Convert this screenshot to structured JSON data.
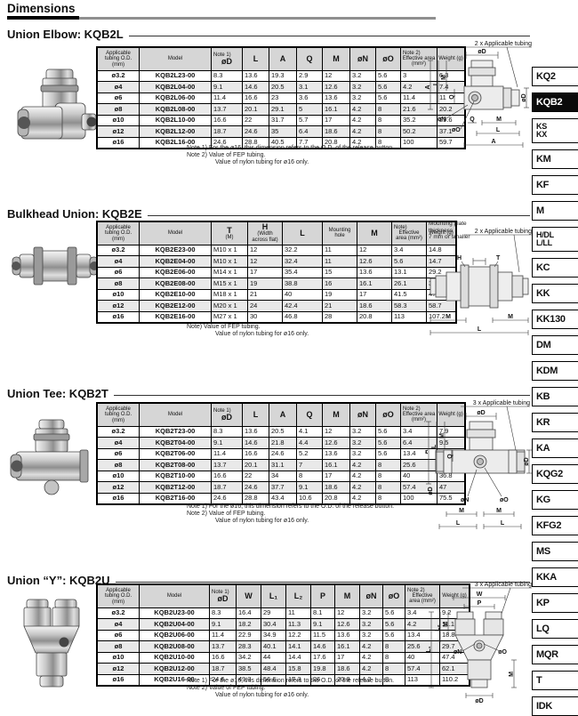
{
  "page": {
    "title": "Dimensions"
  },
  "colors": {
    "header_bg": "#d6d6d6",
    "row_alt": "#e9e9e9",
    "active_tab_bg": "#0a0a0a"
  },
  "sidebar": {
    "items": [
      {
        "label": "KQ2",
        "active": false
      },
      {
        "label": "KQB2",
        "active": true
      },
      {
        "label": "KS\nKX",
        "active": false
      },
      {
        "label": "KM",
        "active": false
      },
      {
        "label": "KF",
        "active": false
      },
      {
        "label": "M",
        "active": false
      },
      {
        "label": "H/DL\nL/LL",
        "active": false
      },
      {
        "label": "KC",
        "active": false
      },
      {
        "label": "KK",
        "active": false
      },
      {
        "label": "KK130",
        "active": false
      },
      {
        "label": "DM",
        "active": false
      },
      {
        "label": "KDM",
        "active": false
      },
      {
        "label": "KB",
        "active": false
      },
      {
        "label": "KR",
        "active": false
      },
      {
        "label": "KA",
        "active": false
      },
      {
        "label": "KQG2",
        "active": false
      },
      {
        "label": "KG",
        "active": false
      },
      {
        "label": "KFG2",
        "active": false
      },
      {
        "label": "MS",
        "active": false
      },
      {
        "label": "KKA",
        "active": false
      },
      {
        "label": "KP",
        "active": false
      },
      {
        "label": "LQ",
        "active": false
      },
      {
        "label": "MQR",
        "active": false
      },
      {
        "label": "T",
        "active": false
      },
      {
        "label": "IDK",
        "active": false
      }
    ]
  },
  "sections": [
    {
      "heading": "Union Elbow: KQB2L",
      "table": {
        "headers": [
          {
            "label": "Applicable tubing O.D.",
            "post": "(mm)",
            "small": true
          },
          {
            "label": "Model",
            "small": true
          },
          {
            "pre": "Note 1)",
            "label": "øD",
            "bold": true
          },
          {
            "label": "L",
            "bold": true
          },
          {
            "label": "A",
            "bold": true
          },
          {
            "label": "Q",
            "bold": true
          },
          {
            "label": "M",
            "bold": true
          },
          {
            "label": "øN",
            "bold": true
          },
          {
            "label": "øO",
            "bold": true
          },
          {
            "pre": "Note 2)",
            "label": "Effective area (mm²)",
            "small": true
          },
          {
            "label": "Weight (g)",
            "small": true
          }
        ],
        "rows": [
          [
            "ø3.2",
            "KQB2L23-00",
            "8.3",
            "13.6",
            "19.3",
            "2.9",
            "12",
            "3.2",
            "5.6",
            "3",
            "6.3"
          ],
          [
            "ø4",
            "KQB2L04-00",
            "9.1",
            "14.6",
            "20.5",
            "3.1",
            "12.6",
            "3.2",
            "5.6",
            "4.2",
            "7.4"
          ],
          [
            "ø6",
            "KQB2L06-00",
            "11.4",
            "16.6",
            "23",
            "3.6",
            "13.6",
            "3.2",
            "5.6",
            "11.4",
            "11"
          ],
          [
            "ø8",
            "KQB2L08-00",
            "13.7",
            "20.1",
            "29.1",
            "5",
            "16.1",
            "4.2",
            "8",
            "21.6",
            "20.2"
          ],
          [
            "ø10",
            "KQB2L10-00",
            "16.6",
            "22",
            "31.7",
            "5.7",
            "17",
            "4.2",
            "8",
            "35.2",
            "29.6"
          ],
          [
            "ø12",
            "KQB2L12-00",
            "18.7",
            "24.6",
            "35",
            "6.4",
            "18.6",
            "4.2",
            "8",
            "50.2",
            "37.1"
          ],
          [
            "ø16",
            "KQB2L16-00",
            "24.6",
            "28.8",
            "40.5",
            "7.7",
            "20.8",
            "4.2",
            "8",
            "100",
            "59.7"
          ]
        ]
      },
      "notes": [
        "Note 1) For the ø16, this dimension refers to the O.D. of the release button.",
        "Note 2) Value of FEP tubing.",
        "Value of nylon tubing for ø16 only."
      ],
      "diagram": {
        "caption": "2 x Applicable tubing",
        "d_top": "øD",
        "a_left": "A",
        "l_left": "L",
        "m_left": "M",
        "q_left": "Q",
        "n": "øN",
        "o": "øO",
        "q_bottom": "Q",
        "m_bottom": "M",
        "l_bottom": "L",
        "a_bottom": "A",
        "d_right": "øD"
      }
    },
    {
      "heading": "Bulkhead Union: KQB2E",
      "table": {
        "headers": [
          {
            "label": "Applicable tubing O.D.",
            "post": "(mm)",
            "small": true
          },
          {
            "label": "Model",
            "small": true
          },
          {
            "label": "T",
            "post": "(M)",
            "bold": true
          },
          {
            "label": "H",
            "post": "(Width across flat)",
            "bold": true
          },
          {
            "label": "L",
            "bold": true
          },
          {
            "label": "Mounting hole",
            "small": true
          },
          {
            "label": "M",
            "bold": true
          },
          {
            "pre": "Note)",
            "label": "Effective area (mm²)",
            "small": true
          },
          {
            "label": "Weight (g)",
            "small": true
          }
        ],
        "rows": [
          [
            "ø3.2",
            "KQB2E23-00",
            "M10 x 1",
            "12",
            "32.2",
            "11",
            "12",
            "3.4",
            "14.8"
          ],
          [
            "ø4",
            "KQB2E04-00",
            "M10 x 1",
            "12",
            "32.4",
            "11",
            "12.6",
            "5.6",
            "14.7"
          ],
          [
            "ø6",
            "KQB2E06-00",
            "M14 x 1",
            "17",
            "35.4",
            "15",
            "13.6",
            "13.1",
            "29.2"
          ],
          [
            "ø8",
            "KQB2E08-00",
            "M15 x 1",
            "19",
            "38.8",
            "16",
            "16.1",
            "26.1",
            "34.9"
          ],
          [
            "ø10",
            "KQB2E10-00",
            "M18 x 1",
            "21",
            "40",
            "19",
            "17",
            "41.5",
            "47.1"
          ],
          [
            "ø12",
            "KQB2E12-00",
            "M20 x 1",
            "24",
            "42.4",
            "21",
            "18.6",
            "58.3",
            "58.7"
          ],
          [
            "ø16",
            "KQB2E16-00",
            "M27 x 1",
            "30",
            "46.8",
            "28",
            "20.8",
            "113",
            "107.2"
          ]
        ]
      },
      "notes": [
        "Note) Value of FEP tubing.",
        "Value of nylon tubing for ø16 only."
      ],
      "diagram": {
        "caption": "2 x Applicable tubing",
        "note": "Mounting plate\nthickness\n7 mm or smaller",
        "h": "H",
        "t": "T",
        "m_left": "M",
        "m_right": "M",
        "l": "L"
      }
    },
    {
      "heading": "Union Tee: KQB2T",
      "table": {
        "headers": [
          {
            "label": "Applicable tubing O.D.",
            "post": "(mm)",
            "small": true
          },
          {
            "label": "Model",
            "small": true
          },
          {
            "pre": "Note 1)",
            "label": "øD",
            "bold": true
          },
          {
            "label": "L",
            "bold": true
          },
          {
            "label": "A",
            "bold": true
          },
          {
            "label": "Q",
            "bold": true
          },
          {
            "label": "M",
            "bold": true
          },
          {
            "label": "øN",
            "bold": true
          },
          {
            "label": "øO",
            "bold": true
          },
          {
            "pre": "Note 2)",
            "label": "Effective area (mm²)",
            "small": true
          },
          {
            "label": "Weight (g)",
            "small": true
          }
        ],
        "rows": [
          [
            "ø3.2",
            "KQB2T23-00",
            "8.3",
            "13.6",
            "20.5",
            "4.1",
            "12",
            "3.2",
            "5.6",
            "3.4",
            "7.9"
          ],
          [
            "ø4",
            "KQB2T04-00",
            "9.1",
            "14.6",
            "21.8",
            "4.4",
            "12.6",
            "3.2",
            "5.6",
            "6.4",
            "9.5"
          ],
          [
            "ø6",
            "KQB2T06-00",
            "11.4",
            "16.6",
            "24.6",
            "5.2",
            "13.6",
            "3.2",
            "5.6",
            "13.4",
            "14.2"
          ],
          [
            "ø8",
            "KQB2T08-00",
            "13.7",
            "20.1",
            "31.1",
            "7",
            "16.1",
            "4.2",
            "8",
            "25.6",
            "24.4"
          ],
          [
            "ø10",
            "KQB2T10-00",
            "16.6",
            "22",
            "34",
            "8",
            "17",
            "4.2",
            "8",
            "40",
            "36.8"
          ],
          [
            "ø12",
            "KQB2T12-00",
            "18.7",
            "24.6",
            "37.7",
            "9.1",
            "18.6",
            "4.2",
            "8",
            "57.4",
            "47"
          ],
          [
            "ø16",
            "KQB2T16-00",
            "24.6",
            "28.8",
            "43.4",
            "10.6",
            "20.8",
            "4.2",
            "8",
            "100",
            "75.5"
          ]
        ]
      },
      "notes": [
        "Note 1) For the ø16, this dimension refers to the O.D. of the release button.",
        "Note 2) Value of FEP tubing.",
        "Value of nylon tubing for ø16 only."
      ],
      "diagram": {
        "caption": "3 x Applicable tubing",
        "d_top": "øD",
        "a_left": "A",
        "l_left": "L",
        "m_left": "M",
        "q_left": "Q",
        "d_left": "øD",
        "n": "øN",
        "o": "øO",
        "m_bl": "M",
        "m_br": "M",
        "l_bl": "L",
        "l_br": "L",
        "d_right": "øD"
      }
    },
    {
      "heading": "Union “Y”: KQB2U",
      "table": {
        "headers": [
          {
            "label": "Applicable tubing O.D.",
            "post": "(mm)",
            "small": true
          },
          {
            "label": "Model",
            "small": true
          },
          {
            "pre": "Note 1)",
            "label": "øD",
            "bold": true
          },
          {
            "label": "W",
            "bold": true
          },
          {
            "label": "L₁",
            "bold": true
          },
          {
            "label": "L₂",
            "bold": true
          },
          {
            "label": "P",
            "bold": true
          },
          {
            "label": "M",
            "bold": true
          },
          {
            "label": "øN",
            "bold": true
          },
          {
            "label": "øO",
            "bold": true
          },
          {
            "pre": "Note 2)",
            "label": "Effective area (mm²)",
            "small": true
          },
          {
            "label": "Weight (g)",
            "small": true
          }
        ],
        "rows": [
          [
            "ø3.2",
            "KQB2U23-00",
            "8.3",
            "16.4",
            "29",
            "11",
            "8.1",
            "12",
            "3.2",
            "5.6",
            "3.4",
            "9.2"
          ],
          [
            "ø4",
            "KQB2U04-00",
            "9.1",
            "18.2",
            "30.4",
            "11.3",
            "9.1",
            "12.6",
            "3.2",
            "5.6",
            "4.2",
            "11.1"
          ],
          [
            "ø6",
            "KQB2U06-00",
            "11.4",
            "22.9",
            "34.9",
            "12.2",
            "11.5",
            "13.6",
            "3.2",
            "5.6",
            "13.4",
            "18.8"
          ],
          [
            "ø8",
            "KQB2U08-00",
            "13.7",
            "28.3",
            "40.1",
            "14.1",
            "14.6",
            "16.1",
            "4.2",
            "8",
            "25.6",
            "29.7"
          ],
          [
            "ø10",
            "KQB2U10-00",
            "16.6",
            "34.2",
            "44",
            "14.4",
            "17.6",
            "17",
            "4.2",
            "8",
            "40",
            "47.4"
          ],
          [
            "ø12",
            "KQB2U12-00",
            "18.7",
            "38.5",
            "48.4",
            "15.8",
            "19.8",
            "18.6",
            "4.2",
            "8",
            "57.4",
            "62.1"
          ],
          [
            "ø16",
            "KQB2U16-00",
            "24.6",
            "49.3",
            "56.6",
            "17.3",
            "26",
            "20.8",
            "4.2",
            "8",
            "113",
            "110.2"
          ]
        ]
      },
      "notes": [
        "Note 1) For the ø16, this dimension refers to the O.D. of the release button.",
        "Note 2) Value of FEP tubing.",
        "Value of nylon tubing for ø16 only."
      ],
      "diagram": {
        "caption": "3 x Applicable tubing",
        "w": "W",
        "p": "P",
        "m_left": "M",
        "l2": "L₂",
        "l1": "L₁",
        "n": "øN",
        "o": "øO",
        "m_right": "M",
        "d_bottom": "øD"
      }
    }
  ]
}
